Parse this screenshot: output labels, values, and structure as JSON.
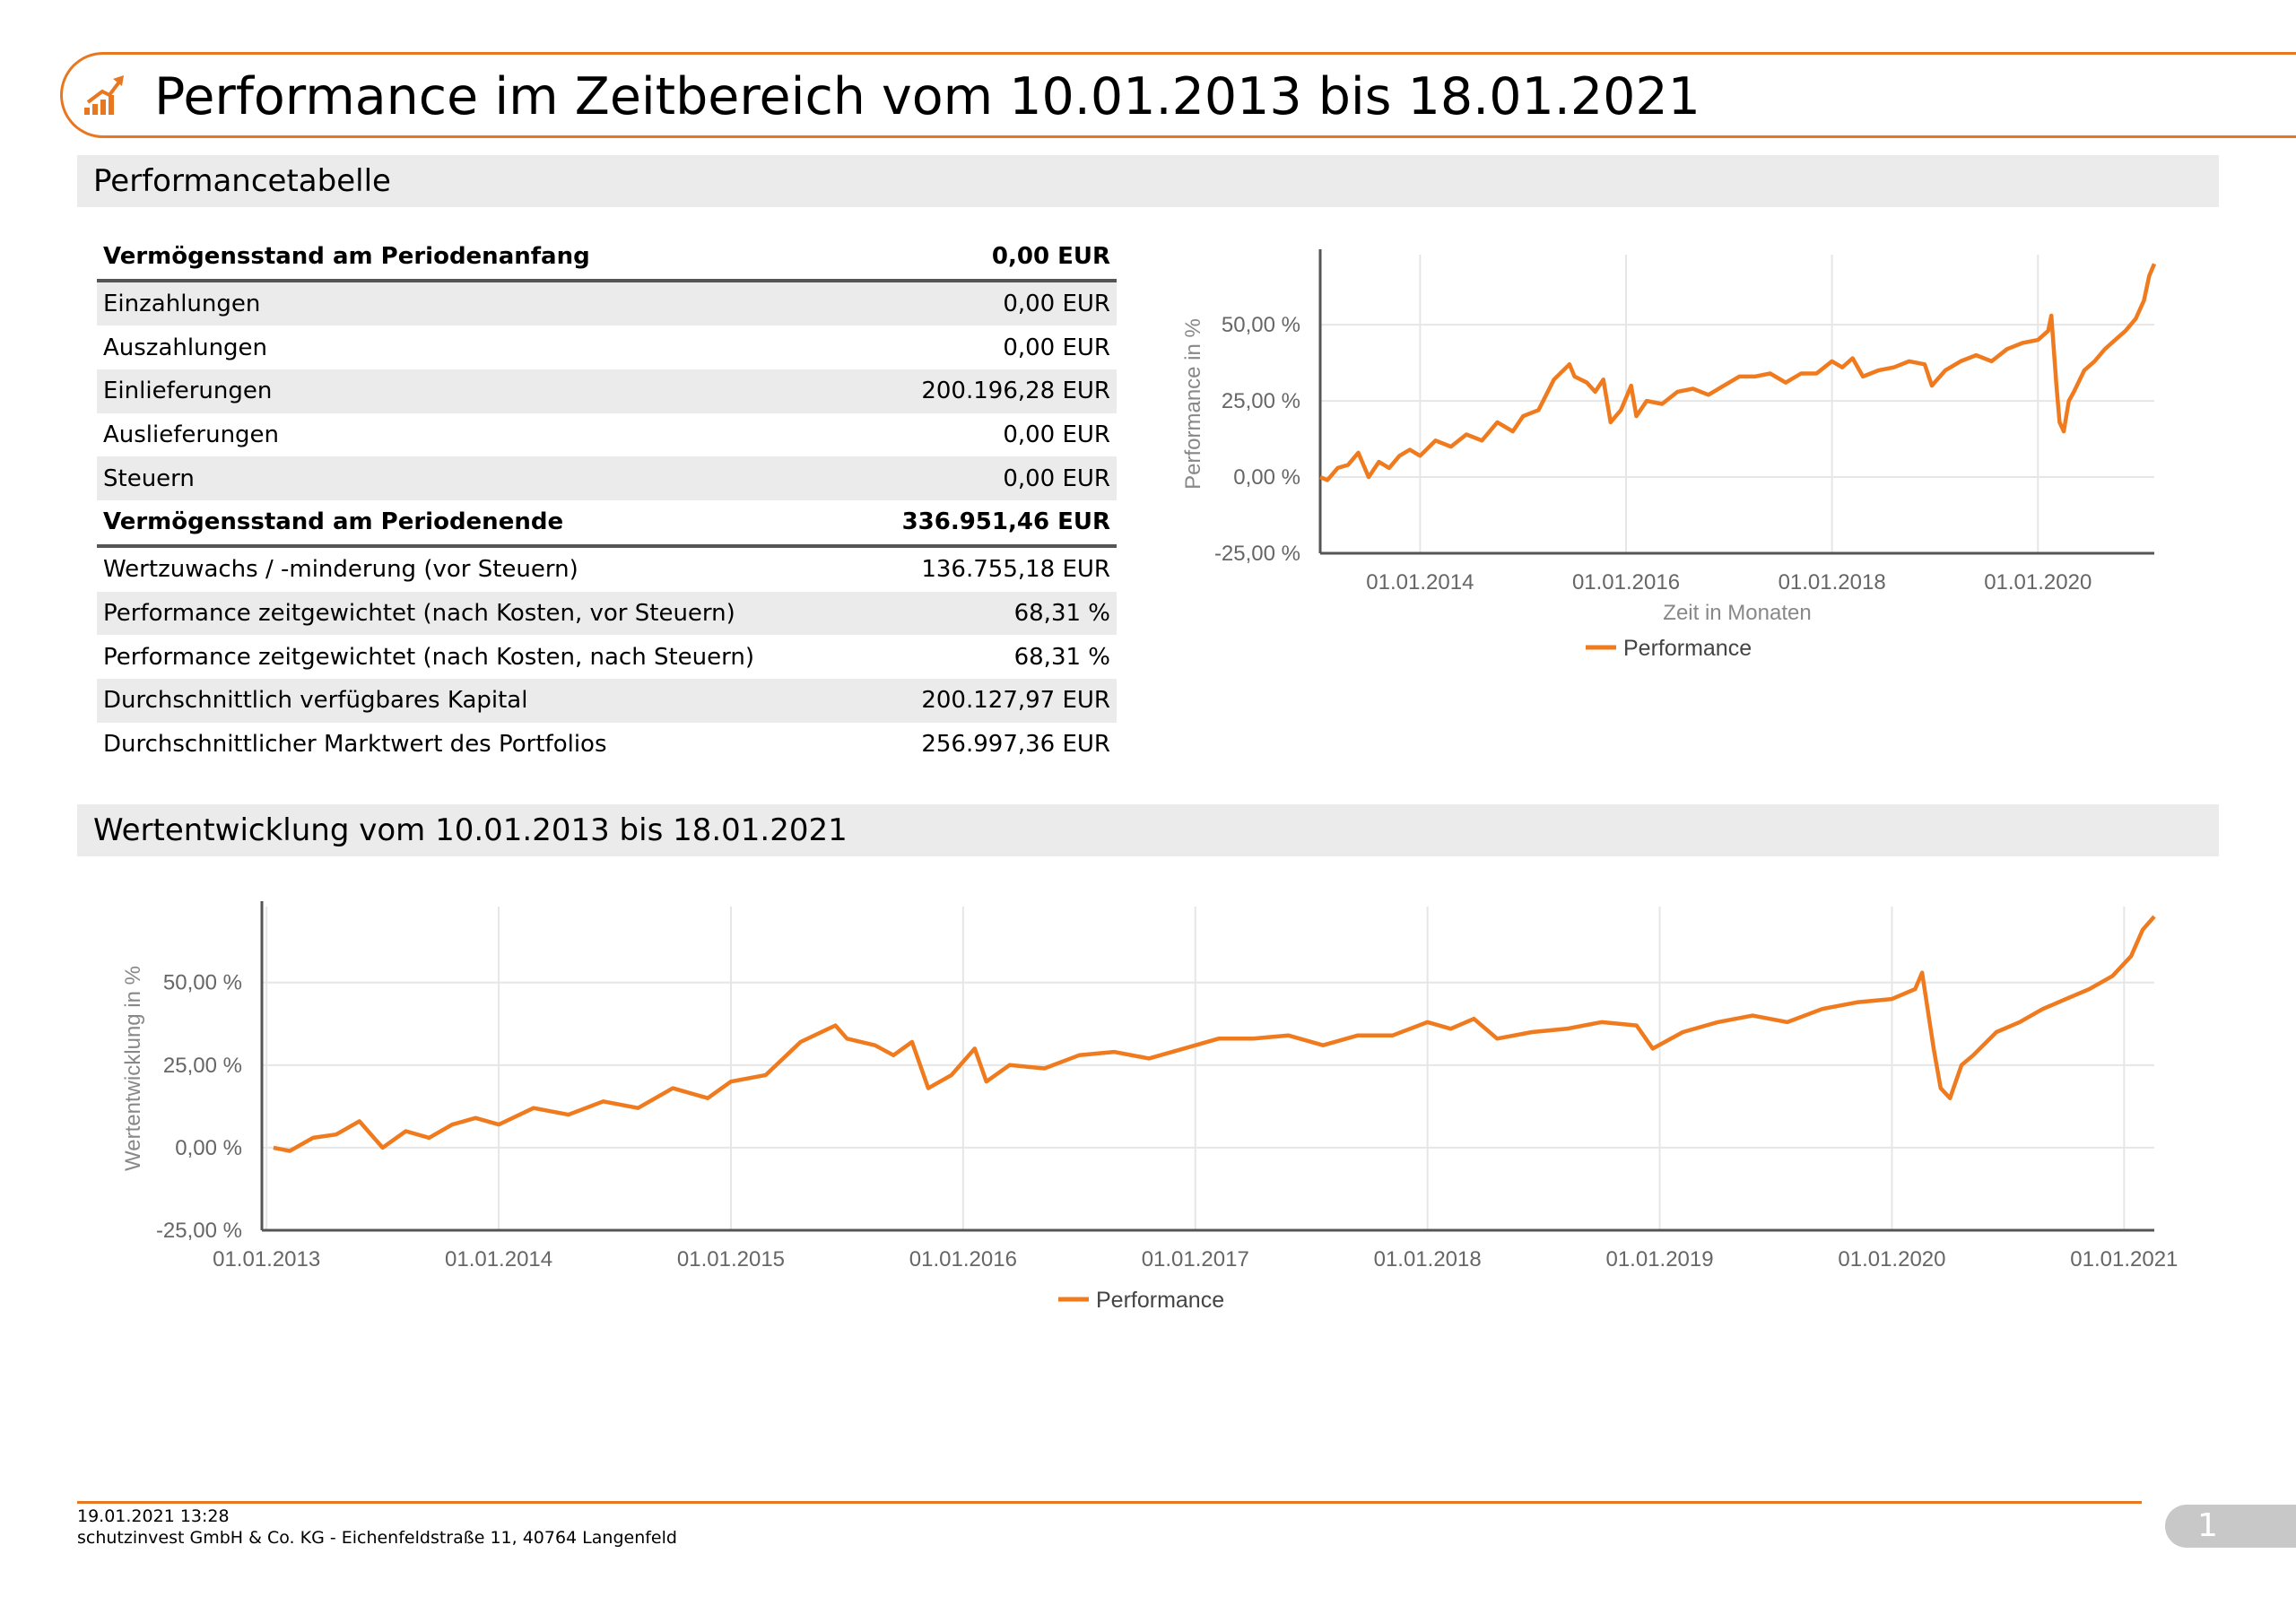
{
  "header": {
    "title": "Performance im Zeitbereich vom 10.01.2013 bis 18.01.2021",
    "icon": "growth-chart-icon"
  },
  "sections": {
    "table_title": "Performancetabelle",
    "chart_title": "Wertentwicklung vom 10.01.2013 bis 18.01.2021"
  },
  "table": {
    "rows": [
      {
        "label": "Vermögensstand am Periodenanfang",
        "value": "0,00 EUR",
        "bold": true
      },
      {
        "label": "Einzahlungen",
        "value": "0,00 EUR"
      },
      {
        "label": "Auszahlungen",
        "value": "0,00 EUR"
      },
      {
        "label": "Einlieferungen",
        "value": "200.196,28 EUR"
      },
      {
        "label": "Auslieferungen",
        "value": "0,00 EUR"
      },
      {
        "label": "Steuern",
        "value": "0,00 EUR"
      },
      {
        "label": "Vermögensstand am Periodenende",
        "value": "336.951,46 EUR",
        "bold": true
      },
      {
        "label": "Wertzuwachs / -minderung (vor Steuern)",
        "value": "136.755,18 EUR"
      },
      {
        "label": "Performance zeitgewichtet (nach Kosten, vor Steuern)",
        "value": "68,31 %"
      },
      {
        "label": "Performance zeitgewichtet (nach Kosten, nach Steuern)",
        "value": "68,31 %"
      },
      {
        "label": "Durchschnittlich verfügbares Kapital",
        "value": "200.127,97 EUR"
      },
      {
        "label": "Durchschnittlicher Marktwert des Portfolios",
        "value": "256.997,36 EUR"
      }
    ]
  },
  "footer": {
    "timestamp": "19.01.2021 13:28",
    "company": "schutzinvest GmbH & Co. KG - Eichenfeldstraße 11, 40764 Langenfeld",
    "page": "1"
  },
  "colors": {
    "accent": "#e87722",
    "line": "#f07a1e",
    "header_bg": "#ebebeb"
  },
  "chart_data": [
    {
      "type": "line",
      "xlabel": "Zeit in Monaten",
      "ylabel": "Performance in %",
      "xticks": [
        "01.01.2014",
        "01.01.2016",
        "01.01.2018",
        "01.01.2020"
      ],
      "xtick_years": [
        2014,
        2016,
        2018,
        2020
      ],
      "xlim": [
        2013.03,
        2021.13
      ],
      "yticks": [
        "-25,00 %",
        "0,00 %",
        "25,00 %",
        "50,00 %"
      ],
      "ytick_values": [
        -25,
        0,
        25,
        50
      ],
      "ylim": [
        -25,
        73
      ],
      "grid": true,
      "legend_position": "bottom",
      "series": [
        {
          "name": "Performance",
          "x": [
            2013.03,
            2013.1,
            2013.2,
            2013.3,
            2013.4,
            2013.5,
            2013.6,
            2013.7,
            2013.8,
            2013.9,
            2014.0,
            2014.15,
            2014.3,
            2014.45,
            2014.6,
            2014.75,
            2014.9,
            2015.0,
            2015.15,
            2015.3,
            2015.45,
            2015.5,
            2015.62,
            2015.7,
            2015.78,
            2015.85,
            2015.95,
            2016.05,
            2016.1,
            2016.2,
            2016.35,
            2016.5,
            2016.65,
            2016.8,
            2016.95,
            2017.1,
            2017.25,
            2017.4,
            2017.55,
            2017.7,
            2017.85,
            2018.0,
            2018.1,
            2018.2,
            2018.3,
            2018.45,
            2018.6,
            2018.75,
            2018.9,
            2018.97,
            2019.1,
            2019.25,
            2019.4,
            2019.55,
            2019.7,
            2019.85,
            2020.0,
            2020.1,
            2020.13,
            2020.18,
            2020.21,
            2020.25,
            2020.3,
            2020.35,
            2020.45,
            2020.55,
            2020.65,
            2020.75,
            2020.85,
            2020.95,
            2021.03,
            2021.08,
            2021.13
          ],
          "y": [
            0,
            -1,
            3,
            4,
            8,
            0,
            5,
            3,
            7,
            9,
            7,
            12,
            10,
            14,
            12,
            18,
            15,
            20,
            22,
            32,
            37,
            33,
            31,
            28,
            32,
            18,
            22,
            30,
            20,
            25,
            24,
            28,
            29,
            27,
            30,
            33,
            33,
            34,
            31,
            34,
            34,
            38,
            36,
            39,
            33,
            35,
            36,
            38,
            37,
            30,
            35,
            38,
            40,
            38,
            42,
            44,
            45,
            48,
            53,
            30,
            18,
            15,
            25,
            28,
            35,
            38,
            42,
            45,
            48,
            52,
            58,
            66,
            70
          ]
        }
      ]
    },
    {
      "type": "line",
      "xlabel": "",
      "ylabel": "Wertentwicklung in %",
      "xticks": [
        "01.01.2013",
        "01.01.2014",
        "01.01.2015",
        "01.01.2016",
        "01.01.2017",
        "01.01.2018",
        "01.01.2019",
        "01.01.2020",
        "01.01.2021"
      ],
      "xtick_years": [
        2013,
        2014,
        2015,
        2016,
        2017,
        2018,
        2019,
        2020,
        2021
      ],
      "xlim": [
        2012.98,
        2021.13
      ],
      "yticks": [
        "-25,00 %",
        "0,00 %",
        "25,00 %",
        "50,00 %"
      ],
      "ytick_values": [
        -25,
        0,
        25,
        50
      ],
      "ylim": [
        -25,
        73
      ],
      "grid": true,
      "legend_position": "bottom",
      "series": [
        {
          "name": "Performance",
          "x": [
            2013.03,
            2013.1,
            2013.2,
            2013.3,
            2013.4,
            2013.5,
            2013.6,
            2013.7,
            2013.8,
            2013.9,
            2014.0,
            2014.15,
            2014.3,
            2014.45,
            2014.6,
            2014.75,
            2014.9,
            2015.0,
            2015.15,
            2015.3,
            2015.45,
            2015.5,
            2015.62,
            2015.7,
            2015.78,
            2015.85,
            2015.95,
            2016.05,
            2016.1,
            2016.2,
            2016.35,
            2016.5,
            2016.65,
            2016.8,
            2016.95,
            2017.1,
            2017.25,
            2017.4,
            2017.55,
            2017.7,
            2017.85,
            2018.0,
            2018.1,
            2018.2,
            2018.3,
            2018.45,
            2018.6,
            2018.75,
            2018.9,
            2018.97,
            2019.1,
            2019.25,
            2019.4,
            2019.55,
            2019.7,
            2019.85,
            2020.0,
            2020.1,
            2020.13,
            2020.18,
            2020.21,
            2020.25,
            2020.3,
            2020.35,
            2020.45,
            2020.55,
            2020.65,
            2020.75,
            2020.85,
            2020.95,
            2021.03,
            2021.08,
            2021.13
          ],
          "y": [
            0,
            -1,
            3,
            4,
            8,
            0,
            5,
            3,
            7,
            9,
            7,
            12,
            10,
            14,
            12,
            18,
            15,
            20,
            22,
            32,
            37,
            33,
            31,
            28,
            32,
            18,
            22,
            30,
            20,
            25,
            24,
            28,
            29,
            27,
            30,
            33,
            33,
            34,
            31,
            34,
            34,
            38,
            36,
            39,
            33,
            35,
            36,
            38,
            37,
            30,
            35,
            38,
            40,
            38,
            42,
            44,
            45,
            48,
            53,
            30,
            18,
            15,
            25,
            28,
            35,
            38,
            42,
            45,
            48,
            52,
            58,
            66,
            70
          ]
        }
      ]
    }
  ]
}
